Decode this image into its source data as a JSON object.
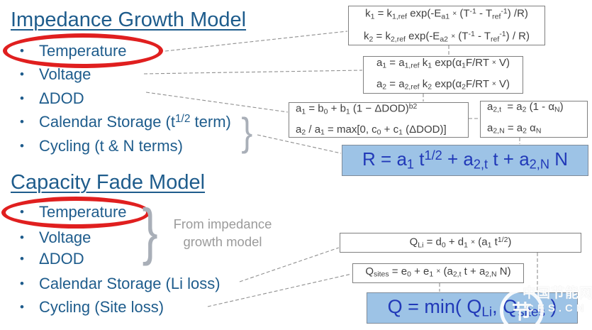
{
  "ui": {
    "bullet_char": "•",
    "brace_char": "}"
  },
  "colors": {
    "heading_blue": "#1E5C8C",
    "formula_text_blue": "#2139B8",
    "highlight_box_blue": "#9DC3E6",
    "circle_red": "#E01F1F",
    "note_gray": "#9B9B9B"
  },
  "impedance": {
    "title": "Impedance Growth Model",
    "bullets": [
      {
        "rich": [
          [
            {
              "t": "Temperature"
            }
          ]
        ],
        "circled": true
      },
      {
        "rich": [
          [
            {
              "t": "Voltage"
            }
          ]
        ],
        "circled": false
      },
      {
        "rich": [
          [
            {
              "t": "ΔDOD"
            }
          ]
        ],
        "circled": false
      },
      {
        "rich": [
          [
            {
              "t": "Calendar Storage (t"
            },
            {
              "t": "1/2",
              "s": "sup"
            },
            {
              "t": " term)"
            }
          ]
        ],
        "circled": false
      },
      {
        "rich": [
          [
            {
              "t": "Cycling (t & N terms)"
            }
          ]
        ],
        "circled": false
      }
    ],
    "eq_k": [
      [
        {
          "t": "k"
        },
        {
          "t": "1",
          "s": "sub"
        },
        {
          "t": " = k"
        },
        {
          "t": "1,ref",
          "s": "sub"
        },
        {
          "t": " exp(-E"
        },
        {
          "t": "a1",
          "s": "sub"
        },
        {
          "t": " "
        },
        {
          "t": "×",
          "s": "mult"
        },
        {
          "t": " (T"
        },
        {
          "t": "-1",
          "s": "sup"
        },
        {
          "t": " - T"
        },
        {
          "t": "ref",
          "s": "sub"
        },
        {
          "t": "-1",
          "s": "sup"
        },
        {
          "t": ") /R)"
        }
      ],
      [
        {
          "t": "k"
        },
        {
          "t": "2",
          "s": "sub"
        },
        {
          "t": " = k"
        },
        {
          "t": "2,ref",
          "s": "sub"
        },
        {
          "t": " exp(-E"
        },
        {
          "t": "a2",
          "s": "sub"
        },
        {
          "t": " "
        },
        {
          "t": "×",
          "s": "mult"
        },
        {
          "t": " (T"
        },
        {
          "t": "-1",
          "s": "sup"
        },
        {
          "t": " - T"
        },
        {
          "t": "ref",
          "s": "sub"
        },
        {
          "t": "-1",
          "s": "sup"
        },
        {
          "t": ") / R)"
        }
      ]
    ],
    "eq_a": [
      [
        {
          "t": "a"
        },
        {
          "t": "1",
          "s": "sub"
        },
        {
          "t": " = a"
        },
        {
          "t": "1,ref",
          "s": "sub"
        },
        {
          "t": " k"
        },
        {
          "t": "1",
          "s": "sub"
        },
        {
          "t": " exp(α"
        },
        {
          "t": "1",
          "s": "sub"
        },
        {
          "t": "F/RT "
        },
        {
          "t": "×",
          "s": "mult"
        },
        {
          "t": " V)"
        }
      ],
      [
        {
          "t": "a"
        },
        {
          "t": "2",
          "s": "sub"
        },
        {
          "t": " = a"
        },
        {
          "t": "2,ref",
          "s": "sub"
        },
        {
          "t": " k"
        },
        {
          "t": "2",
          "s": "sub"
        },
        {
          "t": " exp(α"
        },
        {
          "t": "2",
          "s": "sub"
        },
        {
          "t": "F/RT "
        },
        {
          "t": "×",
          "s": "mult"
        },
        {
          "t": " V)"
        }
      ]
    ],
    "eq_dod": [
      [
        {
          "t": "a"
        },
        {
          "t": "1",
          "s": "sub"
        },
        {
          "t": " = b"
        },
        {
          "t": "0",
          "s": "sub"
        },
        {
          "t": " + b"
        },
        {
          "t": "1",
          "s": "sub"
        },
        {
          "t": " (1 − ΔDOD)"
        },
        {
          "t": "b2",
          "s": "sup"
        }
      ],
      [
        {
          "t": "a"
        },
        {
          "t": "2",
          "s": "sub"
        },
        {
          "t": " / a"
        },
        {
          "t": "1",
          "s": "sub"
        },
        {
          "t": " = max[0, c"
        },
        {
          "t": "0",
          "s": "sub"
        },
        {
          "t": " + c"
        },
        {
          "t": "1",
          "s": "sub"
        },
        {
          "t": " (ΔDOD)]"
        }
      ]
    ],
    "eq_alpha": [
      [
        {
          "t": "a"
        },
        {
          "t": "2,t",
          "s": "sub"
        },
        {
          "t": "  = a"
        },
        {
          "t": "2",
          "s": "sub"
        },
        {
          "t": " (1 - α"
        },
        {
          "t": "N",
          "s": "sub"
        },
        {
          "t": ")"
        }
      ],
      [
        {
          "t": "a"
        },
        {
          "t": "2,N",
          "s": "sub"
        },
        {
          "t": " = a"
        },
        {
          "t": "2",
          "s": "sub"
        },
        {
          "t": " α"
        },
        {
          "t": "N",
          "s": "sub"
        }
      ]
    ],
    "eq_R": [
      [
        {
          "t": "R = a"
        },
        {
          "t": "1",
          "s": "sub"
        },
        {
          "t": " t"
        },
        {
          "t": "1/2",
          "s": "sup"
        },
        {
          "t": " + a"
        },
        {
          "t": "2,t",
          "s": "sub"
        },
        {
          "t": " t + a"
        },
        {
          "t": "2,N",
          "s": "sub"
        },
        {
          "t": " N"
        }
      ]
    ]
  },
  "capacity": {
    "title": "Capacity Fade Model",
    "bullets": [
      {
        "rich": [
          [
            {
              "t": "Temperature"
            }
          ]
        ],
        "circled": true
      },
      {
        "rich": [
          [
            {
              "t": "Voltage"
            }
          ]
        ],
        "circled": false
      },
      {
        "rich": [
          [
            {
              "t": "ΔDOD"
            }
          ]
        ],
        "circled": false
      },
      {
        "rich": [
          [
            {
              "t": "Calendar Storage (Li loss)"
            }
          ]
        ],
        "circled": false
      },
      {
        "rich": [
          [
            {
              "t": "Cycling (Site loss)"
            }
          ]
        ],
        "circled": false
      }
    ],
    "note_line1": "From impedance",
    "note_line2": "growth model",
    "eq_QLi": [
      [
        {
          "t": "Q"
        },
        {
          "t": "Li",
          "s": "sub"
        },
        {
          "t": " = d"
        },
        {
          "t": "0",
          "s": "sub"
        },
        {
          "t": " + d"
        },
        {
          "t": "1",
          "s": "sub"
        },
        {
          "t": " "
        },
        {
          "t": "×",
          "s": "mult"
        },
        {
          "t": " (a"
        },
        {
          "t": "1",
          "s": "sub"
        },
        {
          "t": " t"
        },
        {
          "t": "1/2",
          "s": "sup"
        },
        {
          "t": ")"
        }
      ]
    ],
    "eq_Qsites": [
      [
        {
          "t": "Q"
        },
        {
          "t": "sites",
          "s": "sub"
        },
        {
          "t": " = e"
        },
        {
          "t": "0",
          "s": "sub"
        },
        {
          "t": " + e"
        },
        {
          "t": "1",
          "s": "sub"
        },
        {
          "t": " "
        },
        {
          "t": "×",
          "s": "mult"
        },
        {
          "t": " (a"
        },
        {
          "t": "2,t",
          "s": "sub"
        },
        {
          "t": " t + a"
        },
        {
          "t": "2,N",
          "s": "sub"
        },
        {
          "t": " N)"
        }
      ]
    ],
    "eq_Q": [
      [
        {
          "t": "Q = min( Q"
        },
        {
          "t": "Li",
          "s": "sub"
        },
        {
          "t": ", Q"
        },
        {
          "t": "sites",
          "s": "sub"
        },
        {
          "t": " )"
        }
      ]
    ]
  },
  "watermark": {
    "logo_icon": "cesn-ring-icon",
    "logo_glyph": "节",
    "brand": "中国节能网",
    "domain": "CES.CN"
  }
}
